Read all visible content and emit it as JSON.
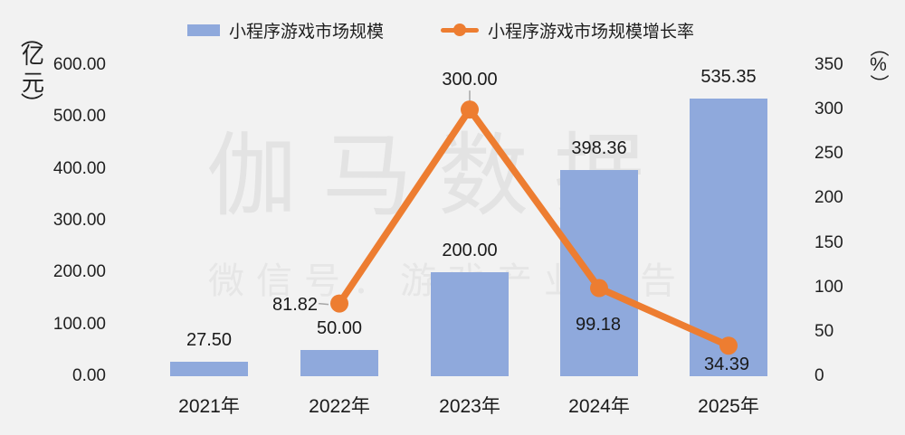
{
  "colors": {
    "background": "#F2F2F2",
    "bar": "#8FA9DC",
    "line": "#ED7D31",
    "text": "#1a1a1a",
    "watermark_title": "#E3E3E3",
    "watermark_subtitle": "#E6E6E6",
    "leader": "#A6A6A6"
  },
  "watermark": {
    "title": "伽马数据",
    "subtitle": "微信号：游戏产业报告"
  },
  "chart_data": {
    "type": "combo-bar-line",
    "title": "",
    "categories": [
      "2021年",
      "2022年",
      "2023年",
      "2024年",
      "2025年"
    ],
    "series": [
      {
        "name": "小程序游戏市场规模",
        "type": "bar",
        "axis": "left",
        "values": [
          27.5,
          50,
          200,
          398.36,
          535.35
        ],
        "labels": [
          "27.50",
          "50.00",
          "200.00",
          "398.36",
          "535.35"
        ]
      },
      {
        "name": "小程序游戏市场规模增长率",
        "type": "line",
        "axis": "right",
        "values": [
          null,
          81.82,
          300,
          99.18,
          34.39
        ],
        "labels": [
          null,
          "81.82",
          "300.00",
          "99.18",
          "34.39"
        ],
        "label_positions": [
          null,
          "left",
          "above",
          "below",
          "below-close"
        ]
      }
    ],
    "left_axis": {
      "unit": "（亿元）",
      "min": 0,
      "max": 600,
      "ticks": [
        "600.00",
        "500.00",
        "400.00",
        "300.00",
        "200.00",
        "100.00",
        "0.00"
      ]
    },
    "right_axis": {
      "unit": "（%）",
      "min": 0,
      "max": 350,
      "ticks": [
        "350",
        "300",
        "250",
        "200",
        "150",
        "100",
        "50",
        "0"
      ]
    },
    "legend": [
      {
        "label": "小程序游戏市场规模",
        "marker": "bar-swatch"
      },
      {
        "label": "小程序游戏市场规模增长率",
        "marker": "line-dot"
      }
    ],
    "grid": false,
    "legend_position": "top-center"
  }
}
